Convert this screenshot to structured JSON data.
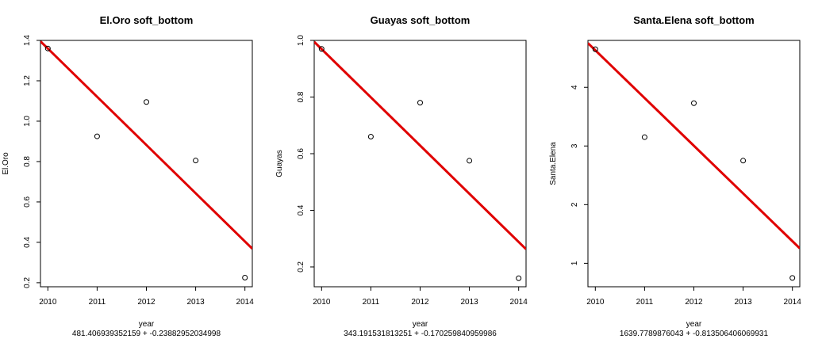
{
  "chart_data": [
    {
      "type": "scatter",
      "title": "El.Oro soft_bottom",
      "xlabel": "year",
      "ylabel": "El.Oro",
      "equation": "481.406939352159 + -0.23882952034998",
      "x": [
        2010,
        2011,
        2012,
        2013,
        2014
      ],
      "y": [
        1.36,
        0.925,
        1.095,
        0.805,
        0.225
      ],
      "xlim": [
        2009.85,
        2014.15
      ],
      "ylim": [
        0.18,
        1.4
      ],
      "xticks": [
        2010,
        2011,
        2012,
        2013,
        2014
      ],
      "yticks": [
        0.2,
        0.4,
        0.6,
        0.8,
        1.0,
        1.2,
        1.4
      ],
      "ytick_labels": [
        "0.2",
        "0.4",
        "0.6",
        "0.8",
        "1.0",
        "1.2",
        "1.4"
      ],
      "fit": {
        "intercept": 481.406939352159,
        "slope": -0.23882952034998
      },
      "point_color": "#000000",
      "fit_color": "#e00000"
    },
    {
      "type": "scatter",
      "title": "Guayas soft_bottom",
      "xlabel": "year",
      "ylabel": "Guayas",
      "equation": "343.191531813251 + -0.170259840959986",
      "x": [
        2010,
        2011,
        2012,
        2013,
        2014
      ],
      "y": [
        0.97,
        0.66,
        0.78,
        0.575,
        0.16
      ],
      "xlim": [
        2009.85,
        2014.15
      ],
      "ylim": [
        0.13,
        1.0
      ],
      "xticks": [
        2010,
        2011,
        2012,
        2013,
        2014
      ],
      "yticks": [
        0.2,
        0.4,
        0.6,
        0.8,
        1.0
      ],
      "ytick_labels": [
        "0.2",
        "0.4",
        "0.6",
        "0.8",
        "1.0"
      ],
      "fit": {
        "intercept": 343.191531813251,
        "slope": -0.170259840959986
      },
      "point_color": "#000000",
      "fit_color": "#e00000"
    },
    {
      "type": "scatter",
      "title": "Santa.Elena soft_bottom",
      "xlabel": "year",
      "ylabel": "Santa.Elena",
      "equation": "1639.7789876043 + -0.813506406069931",
      "x": [
        2010,
        2011,
        2012,
        2013,
        2014
      ],
      "y": [
        4.65,
        3.15,
        3.73,
        2.75,
        0.75
      ],
      "xlim": [
        2009.85,
        2014.15
      ],
      "ylim": [
        0.6,
        4.8
      ],
      "xticks": [
        2010,
        2011,
        2012,
        2013,
        2014
      ],
      "yticks": [
        1,
        2,
        3,
        4
      ],
      "ytick_labels": [
        "1",
        "2",
        "3",
        "4"
      ],
      "fit": {
        "intercept": 1639.7789876043,
        "slope": -0.813506406069931
      },
      "point_color": "#000000",
      "fit_color": "#e00000"
    }
  ]
}
